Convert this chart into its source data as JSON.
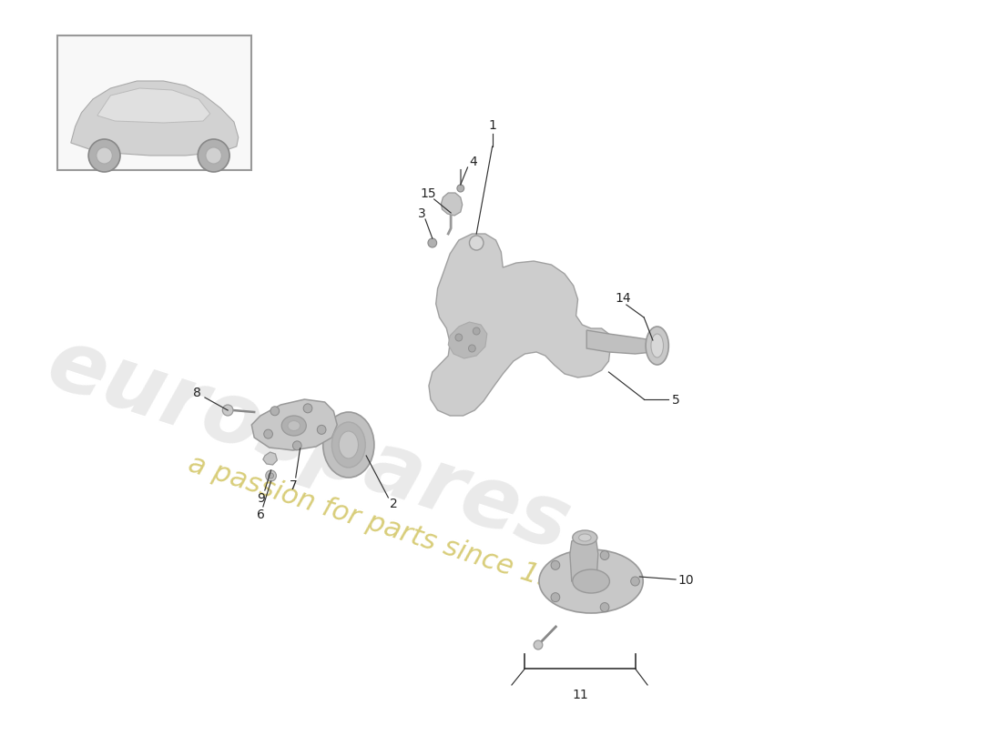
{
  "bg_color": "#ffffff",
  "watermark1": "eurospares",
  "watermark2": "a passion for parts since 1985",
  "wm_color1": "#c8c8c8",
  "wm_color2": "#c8b840",
  "line_color": "#333333",
  "label_color": "#222222",
  "label_fontsize": 10,
  "swoosh_color": "#e0e0e0",
  "part_color_main": "#c8c8c8",
  "part_color_dark": "#b0b0b0",
  "part_color_light": "#d8d8d8",
  "edge_color": "#999999"
}
